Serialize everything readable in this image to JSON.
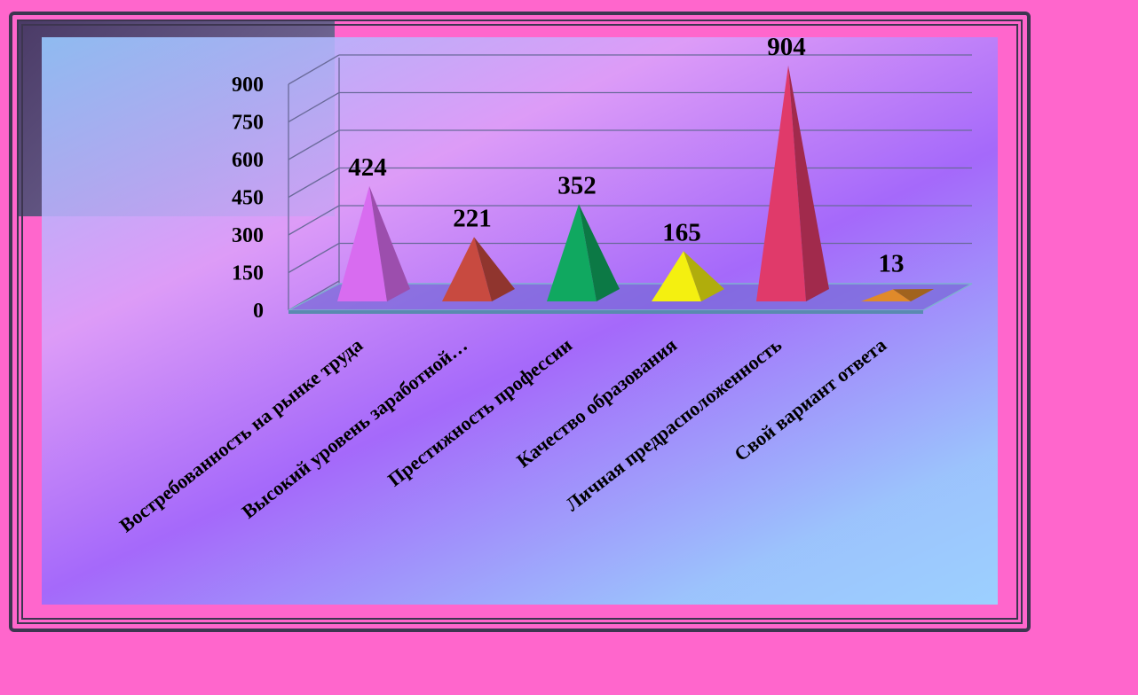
{
  "colors": {
    "background": "#ff66cc",
    "frame": "#3d3550",
    "pyramids": [
      "#d86cf0",
      "#c84a40",
      "#10a860",
      "#f4f010",
      "#e03a6a",
      "#e08a2a"
    ]
  },
  "chart_data": {
    "type": "bar",
    "bar_shape": "3d-pyramid",
    "title": "",
    "xlabel": "",
    "ylabel": "",
    "ylim": [
      0,
      900
    ],
    "y_ticks": [
      "0",
      "150",
      "300",
      "450",
      "600",
      "750",
      "900"
    ],
    "grid": true,
    "categories": [
      "Востребованность на рынке труда",
      "Высокий уровень заработной…",
      "Престижность профессии",
      "Качество образования",
      "Личная предрасположенность",
      "Свой вариант ответа"
    ],
    "values": [
      424,
      221,
      352,
      165,
      904,
      13
    ],
    "data_labels": [
      "424",
      "221",
      "352",
      "165",
      "904",
      "13"
    ]
  }
}
